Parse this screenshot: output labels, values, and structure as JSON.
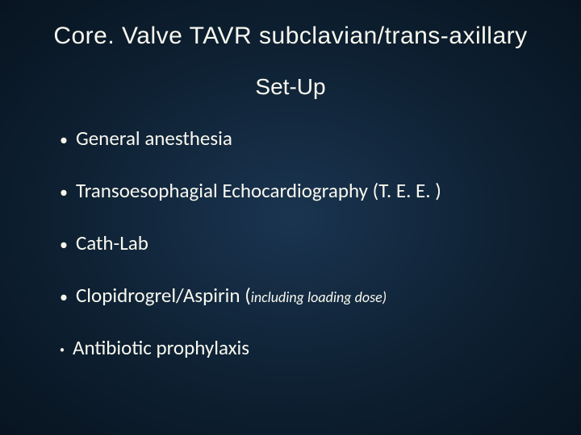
{
  "slide": {
    "background_gradient": {
      "center": "#1a3450",
      "mid": "#0d1f30",
      "outer": "#081420"
    },
    "text_color": "#f8f8ef",
    "title": "Core. Valve TAVR subclavian/trans-axillary",
    "subtitle": "Set-Up",
    "title_fontsize": 30,
    "subtitle_fontsize": 28,
    "bullet_fontsize": 25,
    "note_fontsize": 18,
    "bullets": [
      {
        "text": "General anesthesia",
        "note": "",
        "small_bullet": false
      },
      {
        "text": "Transoesophagial Echocardiography (T. E. E. )",
        "note": "",
        "small_bullet": false
      },
      {
        "text": "Cath-Lab",
        "note": "",
        "small_bullet": false
      },
      {
        "text": "Clopidrogrel/Aspirin (",
        "note": "including loading dose)",
        "small_bullet": false
      },
      {
        "text": "Antibiotic prophylaxis",
        "note": "",
        "small_bullet": true
      }
    ]
  }
}
